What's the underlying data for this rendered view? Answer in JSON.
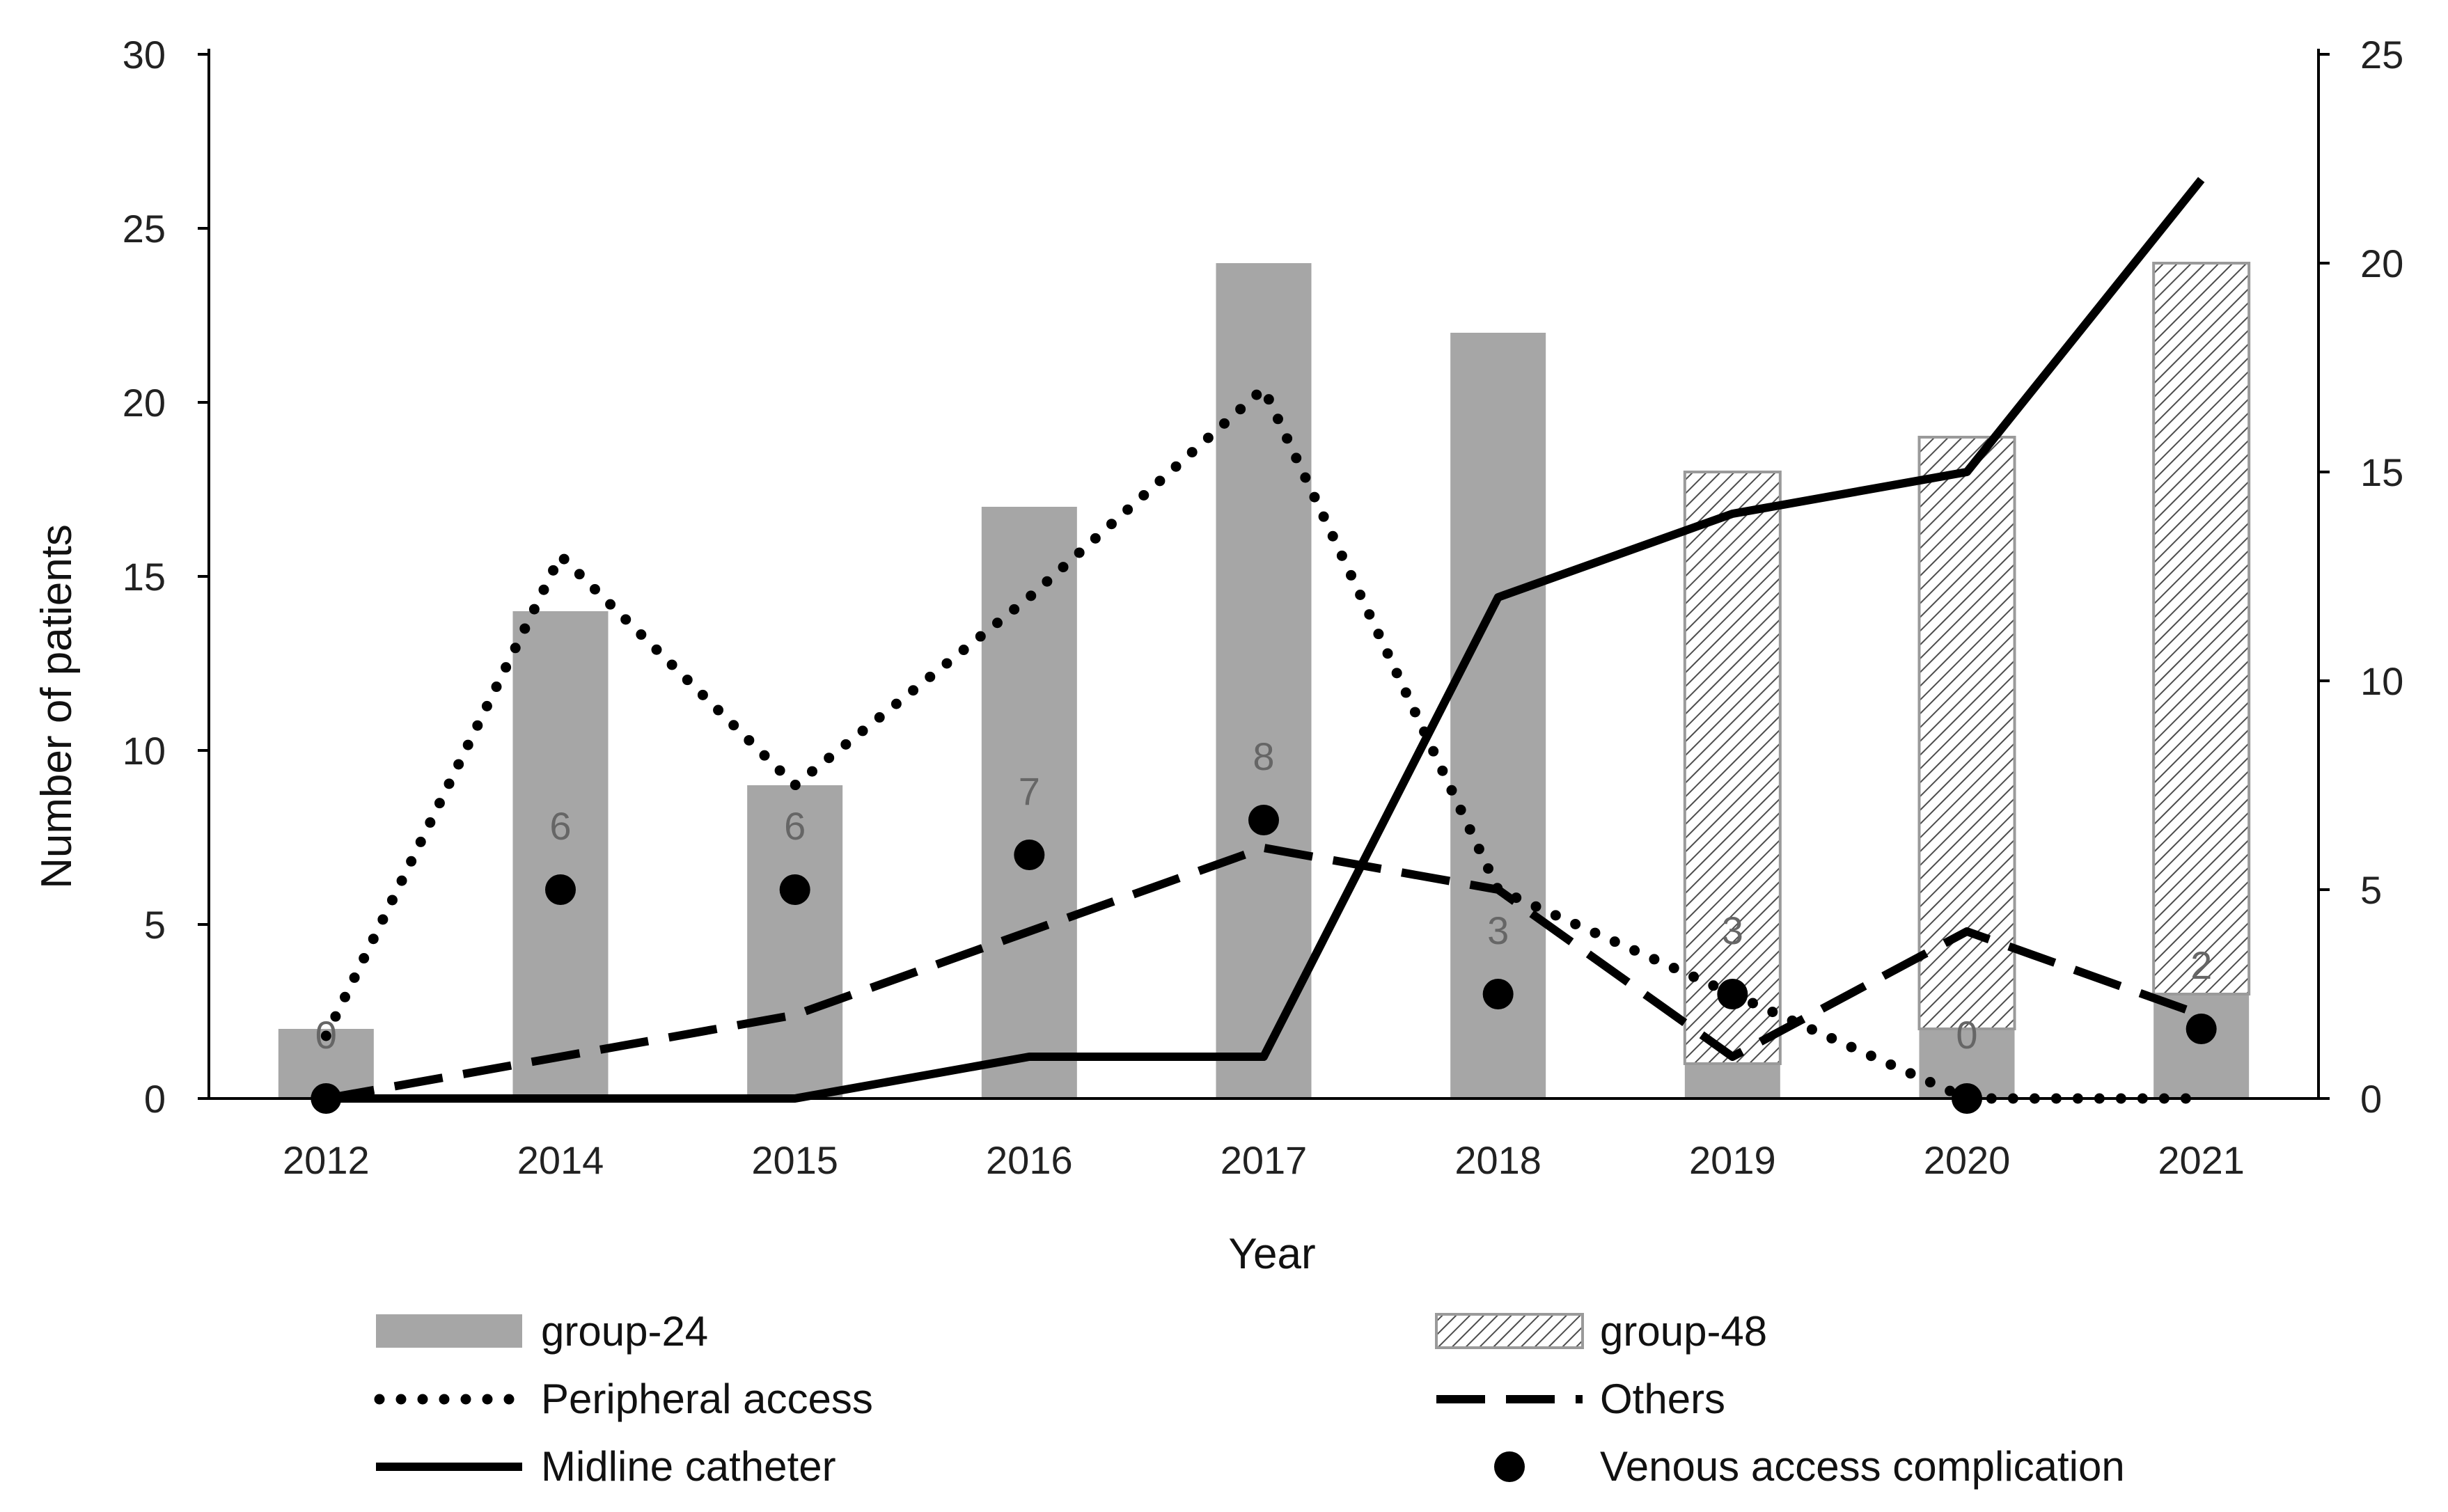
{
  "chart_data": {
    "type": "bar",
    "categories": [
      "2012",
      "2014",
      "2015",
      "2016",
      "2017",
      "2018",
      "2019",
      "2020",
      "2021"
    ],
    "xlabel": "Year",
    "ylabel": "Number of patients",
    "ylim": [
      0,
      30
    ],
    "yticks": [
      "0",
      "5",
      "10",
      "15",
      "20",
      "25",
      "30"
    ],
    "y2lim": [
      0,
      25
    ],
    "y2ticks": [
      "0",
      "5",
      "10",
      "15",
      "20",
      "25"
    ],
    "y2label": "",
    "grid": false,
    "legend_position": "bottom",
    "series": [
      {
        "name": "group-24",
        "kind": "bar",
        "axis": "left",
        "color": "#a6a6a6",
        "values": [
          2,
          14,
          9,
          17,
          24,
          22,
          1,
          2,
          3
        ]
      },
      {
        "name": "group-48",
        "kind": "stacked-bar",
        "stack_on": "group-24",
        "axis": "left",
        "pattern": "diagonal-hatch",
        "values": [
          0,
          0,
          0,
          0,
          0,
          0,
          17,
          17,
          21
        ]
      },
      {
        "name": "Peripheral access",
        "kind": "line",
        "style": "dotted",
        "axis": "right",
        "values": [
          1.5,
          13,
          7.5,
          12,
          17,
          5,
          2.5,
          0,
          0
        ]
      },
      {
        "name": "Others",
        "kind": "line",
        "style": "dashed",
        "axis": "right",
        "values": [
          0,
          1,
          2,
          4,
          6,
          5,
          1,
          4,
          2
        ]
      },
      {
        "name": "Midline catheter",
        "kind": "line",
        "style": "solid",
        "axis": "right",
        "values": [
          0,
          0,
          0,
          1,
          1,
          12,
          14,
          15,
          22
        ]
      },
      {
        "name": "Venous access complication",
        "kind": "scatter",
        "marker": "circle",
        "axis": "left",
        "values": [
          0,
          6,
          6,
          7,
          8,
          3,
          3,
          0,
          2
        ],
        "labels": [
          "0",
          "6",
          "6",
          "7",
          "8",
          "3",
          "3",
          "0",
          "2"
        ]
      }
    ]
  },
  "legend": {
    "items": [
      {
        "key": "group-24",
        "label": "group-24"
      },
      {
        "key": "group-48",
        "label": "group-48"
      },
      {
        "key": "peripheral",
        "label": "Peripheral access"
      },
      {
        "key": "others",
        "label": "Others"
      },
      {
        "key": "midline",
        "label": "Midline catheter"
      },
      {
        "key": "venous",
        "label": "Venous access complication"
      }
    ]
  },
  "colors": {
    "bar_fill": "#a6a6a6",
    "hatch_line": "#4d4d4d",
    "hatch_border": "#9a9a9a",
    "line": "#000000",
    "axis": "#000000",
    "tick_text": "#222222",
    "data_label": "#666666"
  }
}
